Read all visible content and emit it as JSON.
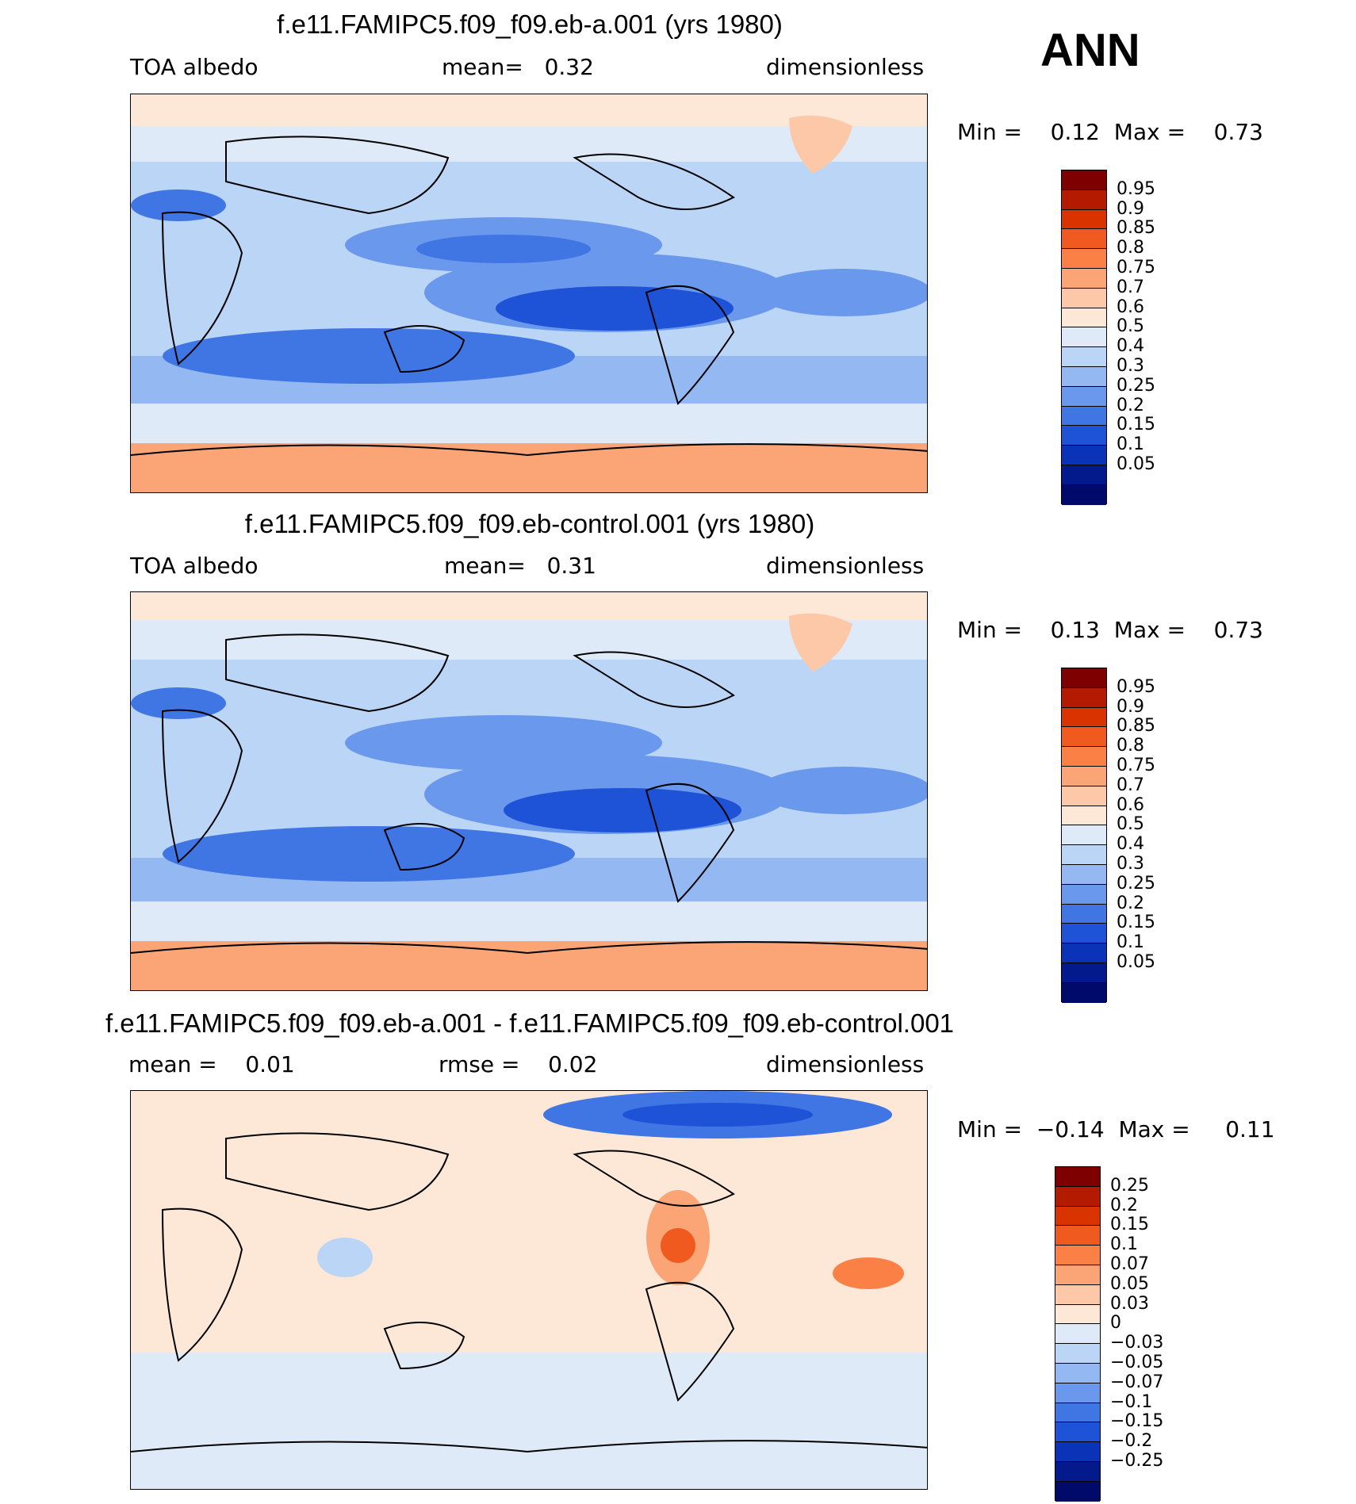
{
  "season": "ANN",
  "panels": [
    {
      "title": "f.e11.FAMIPC5.f09_f09.eb-a.001 (yrs 1980)",
      "left_label": "TOA albedo",
      "mid_label": "mean=   0.32",
      "right_label": "dimensionless",
      "minmax": "Min =    0.12  Max =    0.73",
      "field": "abs",
      "colorbar": {
        "colors": [
          "#7f0000",
          "#b31a00",
          "#d93300",
          "#f05a1e",
          "#fa8046",
          "#fba577",
          "#fdc8a7",
          "#fde8d7",
          "#deeaf8",
          "#bbd5f6",
          "#93b8f2",
          "#6a98ec",
          "#4075e4",
          "#1e52d7",
          "#0a33b7",
          "#021a8c",
          "#000a6b"
        ],
        "labels": [
          "0.95",
          "0.9",
          "0.85",
          "0.8",
          "0.75",
          "0.7",
          "0.6",
          "0.5",
          "0.4",
          "0.3",
          "0.25",
          "0.2",
          "0.15",
          "0.1",
          "0.05"
        ]
      }
    },
    {
      "title": "f.e11.FAMIPC5.f09_f09.eb-control.001 (yrs 1980)",
      "left_label": "TOA albedo",
      "mid_label": "mean=   0.31",
      "right_label": "dimensionless",
      "minmax": "Min =    0.13  Max =    0.73",
      "field": "abs",
      "colorbar": {
        "colors": [
          "#7f0000",
          "#b31a00",
          "#d93300",
          "#f05a1e",
          "#fa8046",
          "#fba577",
          "#fdc8a7",
          "#fde8d7",
          "#deeaf8",
          "#bbd5f6",
          "#93b8f2",
          "#6a98ec",
          "#4075e4",
          "#1e52d7",
          "#0a33b7",
          "#021a8c",
          "#000a6b"
        ],
        "labels": [
          "0.95",
          "0.9",
          "0.85",
          "0.8",
          "0.75",
          "0.7",
          "0.6",
          "0.5",
          "0.4",
          "0.3",
          "0.25",
          "0.2",
          "0.15",
          "0.1",
          "0.05"
        ]
      }
    },
    {
      "title": "f.e11.FAMIPC5.f09_f09.eb-a.001 - f.e11.FAMIPC5.f09_f09.eb-control.001",
      "left_label": "mean =    0.01",
      "mid_label": "rmse =    0.02",
      "right_label": "dimensionless",
      "minmax": "Min =  −0.14  Max =     0.11",
      "field": "diff",
      "colorbar": {
        "colors": [
          "#7f0000",
          "#b31a00",
          "#d93300",
          "#f05a1e",
          "#fa8046",
          "#fba577",
          "#fdc8a7",
          "#fde8d7",
          "#deeaf8",
          "#bbd5f6",
          "#93b8f2",
          "#6a98ec",
          "#4075e4",
          "#1e52d7",
          "#0a33b7",
          "#021a8c",
          "#000a6b"
        ],
        "labels": [
          "0.25",
          "0.2",
          "0.15",
          "0.1",
          "0.07",
          "0.05",
          "0.03",
          "0",
          "−0.03",
          "−0.05",
          "−0.07",
          "−0.1",
          "−0.15",
          "−0.2",
          "−0.25"
        ]
      }
    }
  ]
}
